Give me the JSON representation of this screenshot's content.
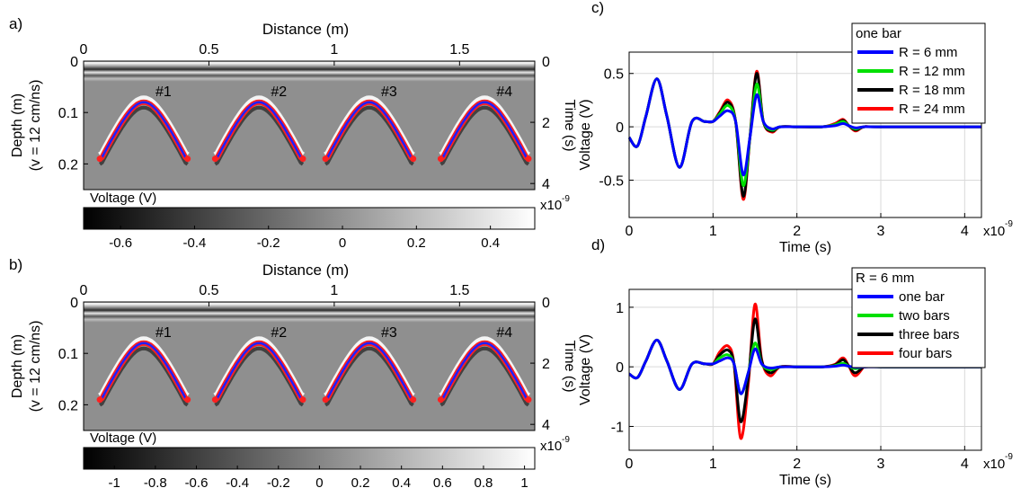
{
  "panels": {
    "a": {
      "label": "a)",
      "xlabel": "Distance (m)",
      "xticks": [
        "0",
        "0.5",
        "1",
        "1.5"
      ],
      "ylabel_left": "Depth (m)",
      "ylabel_left2": "(v = 12 cm/ns)",
      "yticks_left": [
        "0",
        "0.1",
        "0.2"
      ],
      "ylabel_right": "Time (s)",
      "yticks_right": [
        "0",
        "2",
        "4"
      ],
      "right_exp": "x10",
      "colorbar_label": "Voltage (V)",
      "colorbar_ticks": [
        "-0.6",
        "-0.4",
        "-0.2",
        "0",
        "0.2",
        "0.4"
      ],
      "bar_labels": [
        "#1",
        "#2",
        "#3",
        "#4"
      ]
    },
    "b": {
      "label": "b)",
      "xlabel": "Distance (m)",
      "xticks": [
        "0",
        "0.5",
        "1",
        "1.5"
      ],
      "ylabel_left": "Depth (m)",
      "ylabel_left2": "(v = 12 cm/ns)",
      "yticks_left": [
        "0",
        "0.1",
        "0.2"
      ],
      "ylabel_right": "Time (s)",
      "yticks_right": [
        "0",
        "2",
        "4"
      ],
      "right_exp": "x10",
      "colorbar_label": "Voltage (V)",
      "colorbar_ticks": [
        "-1",
        "-0.8",
        "-0.6",
        "-0.4",
        "-0.2",
        "0",
        "0.2",
        "0.4",
        "0.6",
        "0.8",
        "1"
      ],
      "bar_labels": [
        "#1",
        "#2",
        "#3",
        "#4"
      ]
    },
    "c": {
      "label": "c)",
      "xlabel": "Time (s)",
      "ylabel": "Voltage (V)",
      "x_exp": "x10",
      "xticks": [
        "0",
        "1",
        "2",
        "3",
        "4"
      ],
      "yticks": [
        "-0.5",
        "0",
        "0.5"
      ],
      "legend_title": "one bar"
    },
    "d": {
      "label": "d)",
      "xlabel": "Time (s)",
      "ylabel": "Voltage (V)",
      "x_exp": "x10",
      "xticks": [
        "0",
        "1",
        "2",
        "3",
        "4"
      ],
      "yticks": [
        "-1",
        "0",
        "1"
      ],
      "legend_title": "R = 6 mm"
    }
  },
  "exp_power": "-9",
  "chart_data": [
    {
      "panel": "a",
      "type": "heatmap",
      "title": "",
      "xlabel": "Distance (m)",
      "ylabel": "Depth (m)",
      "xlim": [
        0,
        1.8
      ],
      "ylim_depth": [
        0,
        0.25
      ],
      "ylim_time_ns": [
        0,
        4.2
      ],
      "colorbar_range": [
        -0.7,
        0.52
      ],
      "hyperbolas": [
        {
          "label": "#1",
          "apex_x": 0.24,
          "apex_depth": 0.08
        },
        {
          "label": "#2",
          "apex_x": 0.7,
          "apex_depth": 0.08
        },
        {
          "label": "#3",
          "apex_x": 1.14,
          "apex_depth": 0.08
        },
        {
          "label": "#4",
          "apex_x": 1.6,
          "apex_depth": 0.08
        }
      ]
    },
    {
      "panel": "b",
      "type": "heatmap",
      "title": "",
      "xlabel": "Distance (m)",
      "ylabel": "Depth (m)",
      "xlim": [
        0,
        1.8
      ],
      "ylim_depth": [
        0,
        0.25
      ],
      "ylim_time_ns": [
        0,
        4.2
      ],
      "colorbar_range": [
        -1.15,
        1.05
      ],
      "hyperbolas": [
        {
          "label": "#1",
          "apex_x": 0.24,
          "apex_depth": 0.08
        },
        {
          "label": "#2",
          "apex_x": 0.7,
          "apex_depth": 0.08
        },
        {
          "label": "#3",
          "apex_x": 1.14,
          "apex_depth": 0.08
        },
        {
          "label": "#4",
          "apex_x": 1.6,
          "apex_depth": 0.08
        }
      ]
    },
    {
      "panel": "c",
      "type": "line",
      "title": "",
      "xlabel": "Time (s)",
      "ylabel": "Voltage (V)",
      "xlim": [
        0,
        4.2
      ],
      "ylim": [
        -0.85,
        0.7
      ],
      "legend": "top-right",
      "x": [
        0,
        0.1,
        0.2,
        0.33,
        0.45,
        0.6,
        0.75,
        0.9,
        1.0,
        1.08,
        1.18,
        1.27,
        1.36,
        1.44,
        1.52,
        1.6,
        1.7,
        1.8,
        2.0,
        2.3,
        2.45,
        2.55,
        2.62,
        2.7,
        2.8,
        3.0,
        4.2
      ],
      "series": [
        {
          "name": "R = 6 mm",
          "color": "#0000ff",
          "values": [
            -0.1,
            -0.18,
            0.1,
            0.45,
            0.1,
            -0.38,
            0.05,
            0.05,
            0.05,
            0.1,
            0.15,
            0.05,
            -0.45,
            -0.1,
            0.3,
            0.05,
            -0.02,
            0,
            0,
            0,
            0.01,
            0.03,
            0.01,
            -0.01,
            0,
            0,
            0
          ]
        },
        {
          "name": "R = 12 mm",
          "color": "#00e000",
          "values": [
            -0.1,
            -0.18,
            0.1,
            0.45,
            0.1,
            -0.38,
            0.05,
            0.05,
            0.05,
            0.12,
            0.2,
            0.05,
            -0.55,
            -0.1,
            0.4,
            0.05,
            -0.03,
            0,
            0,
            0,
            0.02,
            0.05,
            0.01,
            -0.02,
            0,
            0,
            0
          ]
        },
        {
          "name": "R = 18 mm",
          "color": "#000000",
          "values": [
            -0.1,
            -0.18,
            0.1,
            0.45,
            0.1,
            -0.38,
            0.05,
            0.05,
            0.05,
            0.13,
            0.23,
            0.05,
            -0.65,
            -0.1,
            0.5,
            0.05,
            -0.04,
            0,
            0,
            0,
            0.02,
            0.06,
            0.01,
            -0.03,
            0,
            0,
            0
          ]
        },
        {
          "name": "R = 24 mm",
          "color": "#ff0000",
          "values": [
            -0.1,
            -0.18,
            0.1,
            0.45,
            0.1,
            -0.38,
            0.05,
            0.05,
            0.05,
            0.14,
            0.25,
            0.05,
            -0.68,
            -0.1,
            0.52,
            0.05,
            -0.05,
            0,
            0,
            0,
            0.03,
            0.07,
            0.01,
            -0.04,
            0,
            0,
            0
          ]
        }
      ]
    },
    {
      "panel": "d",
      "type": "line",
      "title": "",
      "xlabel": "Time (s)",
      "ylabel": "Voltage (V)",
      "xlim": [
        0,
        4.2
      ],
      "ylim": [
        -1.4,
        1.3
      ],
      "legend": "top-right",
      "x": [
        0,
        0.1,
        0.2,
        0.33,
        0.45,
        0.6,
        0.75,
        0.9,
        1.0,
        1.08,
        1.18,
        1.25,
        1.33,
        1.42,
        1.5,
        1.58,
        1.68,
        1.8,
        2.0,
        2.3,
        2.45,
        2.55,
        2.62,
        2.7,
        2.85,
        3.0,
        4.2
      ],
      "series": [
        {
          "name": "one bar",
          "color": "#0000ff",
          "values": [
            -0.12,
            -0.18,
            0.1,
            0.45,
            0.1,
            -0.38,
            0.05,
            0.05,
            0.05,
            0.1,
            0.15,
            0.05,
            -0.45,
            -0.1,
            0.3,
            0.05,
            -0.02,
            0,
            0,
            0,
            0.01,
            0.03,
            0.01,
            -0.01,
            0,
            0,
            0
          ]
        },
        {
          "name": "two bars",
          "color": "#00e000",
          "values": [
            -0.12,
            -0.18,
            0.1,
            0.45,
            0.1,
            -0.38,
            0.05,
            0.05,
            0.05,
            0.15,
            0.2,
            0.05,
            -0.45,
            -0.1,
            0.4,
            0.05,
            -0.05,
            0,
            0,
            0,
            0.02,
            0.06,
            0.01,
            -0.03,
            0.02,
            0,
            0
          ]
        },
        {
          "name": "three bars",
          "color": "#000000",
          "values": [
            -0.12,
            -0.18,
            0.1,
            0.45,
            0.1,
            -0.38,
            0.05,
            0.05,
            0.05,
            0.2,
            0.28,
            0.05,
            -0.92,
            -0.2,
            0.8,
            0.1,
            -0.1,
            0,
            0,
            0,
            0.03,
            0.12,
            0.01,
            -0.1,
            0.05,
            0,
            0
          ]
        },
        {
          "name": "four bars",
          "color": "#ff0000",
          "values": [
            -0.12,
            -0.18,
            0.1,
            0.45,
            0.1,
            -0.38,
            0.05,
            0.05,
            0.05,
            0.25,
            0.35,
            0.05,
            -1.2,
            -0.3,
            1.05,
            0.12,
            -0.15,
            0,
            0,
            0,
            0.04,
            0.15,
            0.01,
            -0.15,
            0.07,
            0,
            0
          ]
        }
      ]
    }
  ]
}
